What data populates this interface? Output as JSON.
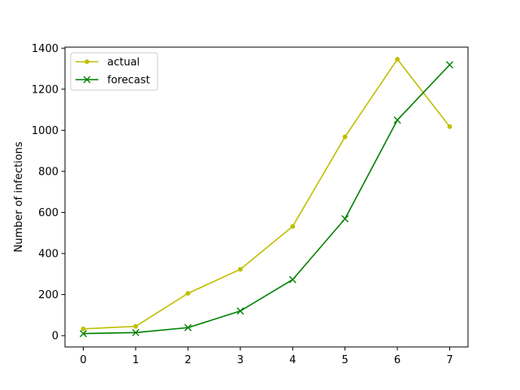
{
  "chart_data": {
    "type": "line",
    "title": "",
    "xlabel": "",
    "ylabel": "Number of infections",
    "x": [
      0,
      1,
      2,
      3,
      4,
      5,
      6,
      7
    ],
    "xlim": [
      -0.35,
      7.35
    ],
    "ylim": [
      -55,
      1405
    ],
    "xticks": [
      0,
      1,
      2,
      3,
      4,
      5,
      6,
      7
    ],
    "yticks": [
      0,
      200,
      400,
      600,
      800,
      1000,
      1200,
      1400
    ],
    "grid": false,
    "legend_position": "upper-left",
    "series": [
      {
        "name": "actual",
        "color": "#bfbf00",
        "marker": "point",
        "values": [
          33,
          45,
          206,
          323,
          532,
          968,
          1346,
          1018
        ]
      },
      {
        "name": "forecast",
        "color": "#008000",
        "marker": "x",
        "values": [
          10,
          15,
          39,
          120,
          273,
          569,
          1050,
          1319
        ]
      }
    ]
  }
}
